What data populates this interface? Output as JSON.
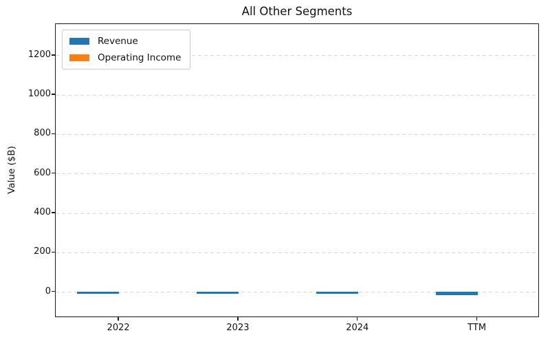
{
  "figure": {
    "title": "All Other Segments",
    "background": "#ffffff",
    "text_color": "#111111",
    "spine_color": "#1a1a1a",
    "gridline_color": "#d7d7d7"
  },
  "chart_data": {
    "type": "bar",
    "title": "All Other Segments",
    "xlabel": "",
    "ylabel": "Value ($B)",
    "categories": [
      "2022",
      "2023",
      "2024",
      "TTM"
    ],
    "series": [
      {
        "name": "Revenue",
        "color": "#1f77b4",
        "values": [
          -5,
          -5,
          -5,
          -15
        ]
      },
      {
        "name": "Operating Income",
        "color": "#ff7f0e",
        "values": [
          0,
          0,
          0,
          0
        ]
      }
    ],
    "yticks": [
      0,
      200,
      400,
      600,
      800,
      1000,
      1200
    ],
    "ylim": [
      -130,
      1360
    ],
    "xlim": [
      -0.53,
      3.52
    ],
    "bar_width": 0.35,
    "grid": "horizontal-dashed",
    "legend_position": "upper-left"
  }
}
